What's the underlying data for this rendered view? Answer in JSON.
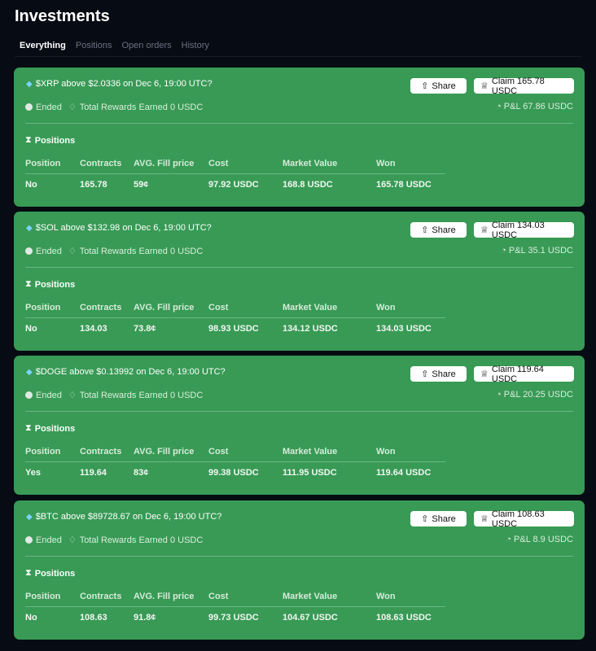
{
  "page": {
    "title": "Investments"
  },
  "tabs": [
    {
      "label": "Everything",
      "active": true
    },
    {
      "label": "Positions"
    },
    {
      "label": "Open orders"
    },
    {
      "label": "History"
    }
  ],
  "colors": {
    "card": "#389a55",
    "background": "#070b14"
  },
  "labels": {
    "ended": "Ended",
    "rewards": "Total Rewards Earned 0 USDC",
    "share": "Share",
    "claim": "Claim",
    "positions": "Positions",
    "pnl": "P&L"
  },
  "columns": [
    "Position",
    "Contracts",
    "AVG. Fill price",
    "Cost",
    "Market Value",
    "Won"
  ],
  "cards": [
    {
      "title": "$XRP above $2.0336 on Dec 6, 19:00 UTC?",
      "claim": "Claim 165.78 USDC",
      "pnl": "P&L 67.86 USDC",
      "row": [
        "No",
        "165.78",
        "59¢",
        "97.92 USDC",
        "168.8 USDC",
        "165.78 USDC"
      ]
    },
    {
      "title": "$SOL above $132.98 on Dec 6, 19:00 UTC?",
      "claim": "Claim 134.03 USDC",
      "pnl": "P&L 35.1 USDC",
      "row": [
        "No",
        "134.03",
        "73.8¢",
        "98.93 USDC",
        "134.12 USDC",
        "134.03 USDC"
      ]
    },
    {
      "title": "$DOGE above $0.13992 on Dec 6, 19:00 UTC?",
      "claim": "Claim 119.64 USDC",
      "pnl": "P&L 20.25 USDC",
      "row": [
        "Yes",
        "119.64",
        "83¢",
        "99.38 USDC",
        "111.95 USDC",
        "119.64 USDC"
      ]
    },
    {
      "title": "$BTC above $89728.67 on Dec 6, 19:00 UTC?",
      "claim": "Claim 108.63 USDC",
      "pnl": "P&L 8.9 USDC",
      "row": [
        "No",
        "108.63",
        "91.8¢",
        "99.73 USDC",
        "104.67 USDC",
        "108.63 USDC"
      ]
    }
  ]
}
